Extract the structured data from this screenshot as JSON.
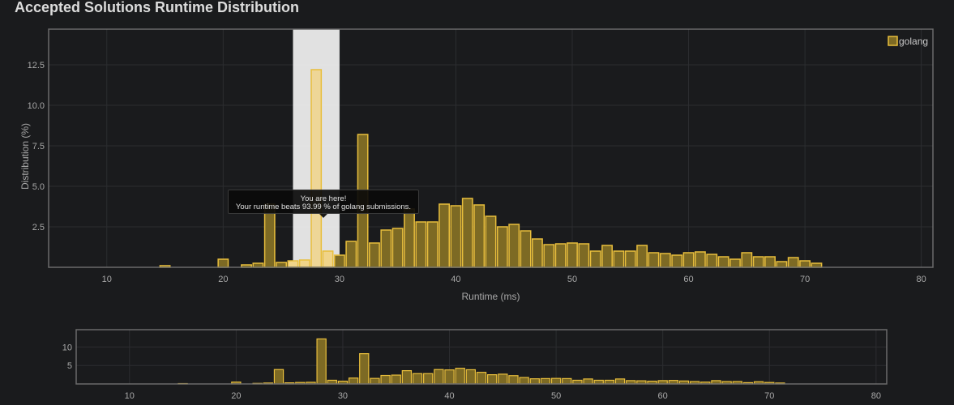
{
  "title": "Accepted Solutions Runtime Distribution",
  "colors": {
    "background": "#1a1b1d",
    "frame": "#6b6b6b",
    "grid": "#2c2d30",
    "bar_fill": "#7d6a24",
    "bar_stroke": "#e8be3c",
    "highlight_fill": "#f0d489",
    "highlight_band": "#ececec"
  },
  "tooltip": {
    "line1": "You are here!",
    "line2": "Your runtime beats 93.99 % of golang submissions."
  },
  "chart_data": [
    {
      "type": "bar",
      "xlabel": "Runtime (ms)",
      "ylabel": "Distribution (%)",
      "xlim": [
        5,
        81
      ],
      "ylim": [
        0,
        14.7
      ],
      "xticks": [
        10,
        20,
        30,
        40,
        50,
        60,
        70,
        80
      ],
      "yticks": [
        2.5,
        5.0,
        7.5,
        10.0,
        12.5
      ],
      "grid": true,
      "legend": "top-right",
      "bin_width_ms": 1,
      "highlight_range": [
        26,
        30
      ],
      "highlight_bin": 28,
      "series": [
        {
          "name": "golang",
          "x": [
            15,
            20,
            22,
            23,
            24,
            25,
            26,
            27,
            28,
            29,
            30,
            31,
            32,
            33,
            34,
            35,
            36,
            37,
            38,
            39,
            40,
            41,
            42,
            43,
            44,
            45,
            46,
            47,
            48,
            49,
            50,
            51,
            52,
            53,
            54,
            55,
            56,
            57,
            58,
            59,
            60,
            61,
            62,
            63,
            64,
            65,
            66,
            67,
            68,
            69,
            70,
            71
          ],
          "values": [
            0.1,
            0.5,
            0.15,
            0.25,
            3.9,
            0.3,
            0.4,
            0.45,
            12.2,
            1.0,
            0.75,
            1.6,
            8.2,
            1.5,
            2.3,
            2.4,
            3.6,
            2.8,
            2.8,
            3.9,
            3.8,
            4.25,
            3.85,
            3.15,
            2.5,
            2.65,
            2.25,
            1.75,
            1.4,
            1.45,
            1.5,
            1.45,
            1.0,
            1.35,
            1.0,
            1.0,
            1.35,
            0.9,
            0.85,
            0.75,
            0.9,
            0.95,
            0.8,
            0.65,
            0.5,
            0.9,
            0.65,
            0.65,
            0.35,
            0.6,
            0.4,
            0.25
          ]
        }
      ]
    },
    {
      "type": "bar",
      "role": "overview",
      "xlim": [
        5,
        81
      ],
      "ylim": [
        0,
        14.7
      ],
      "xticks": [
        10,
        20,
        30,
        40,
        50,
        60,
        70,
        80
      ],
      "yticks": [
        5,
        10
      ],
      "grid": true
    }
  ]
}
